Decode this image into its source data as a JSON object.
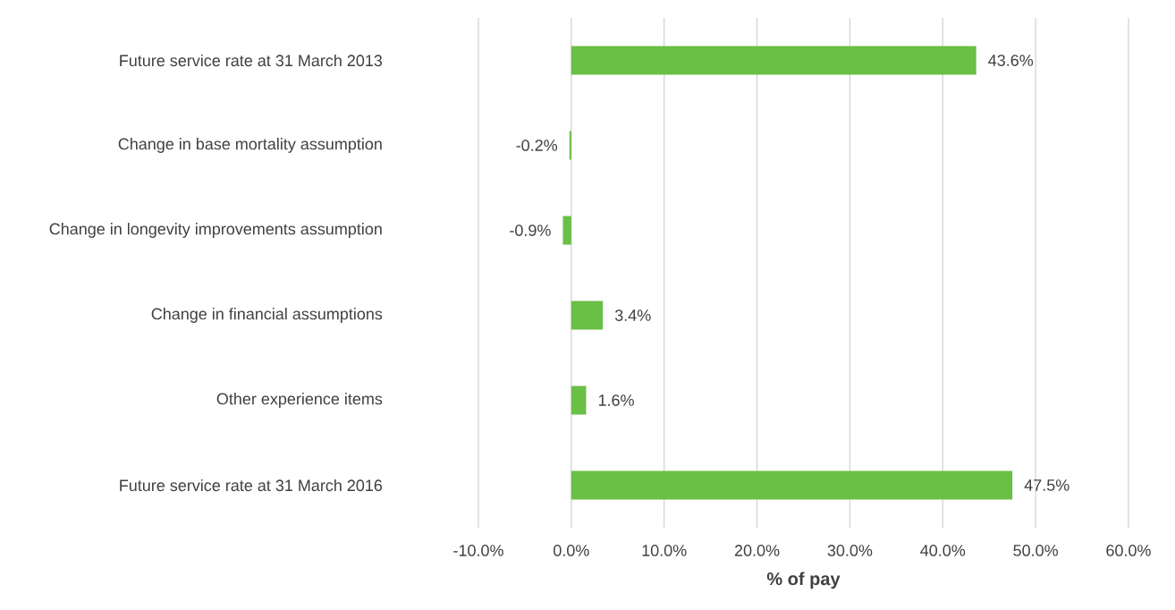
{
  "chart_data": {
    "type": "bar",
    "orientation": "horizontal",
    "xlabel": "% of pay",
    "categories": [
      "Future service rate at 31 March 2013",
      "Change in base mortality assumption",
      "Change in longevity improvements assumption",
      "Change in financial assumptions",
      "Other experience items",
      "Future service rate at 31 March 2016"
    ],
    "values": [
      43.6,
      -0.2,
      -0.9,
      3.4,
      1.6,
      47.5
    ],
    "value_labels": [
      "43.6%",
      "-0.2%",
      "-0.9%",
      "3.4%",
      "1.6%",
      "47.5%"
    ],
    "color": "#6abf45",
    "xlim": [
      -10,
      60
    ],
    "xticks": [
      {
        "value": -10,
        "label": "-10.0%"
      },
      {
        "value": 0,
        "label": "0.0%"
      },
      {
        "value": 10,
        "label": "10.0%"
      },
      {
        "value": 20,
        "label": "20.0%"
      },
      {
        "value": 30,
        "label": "30.0%"
      },
      {
        "value": 40,
        "label": "40.0%"
      },
      {
        "value": 50,
        "label": "50.0%"
      },
      {
        "value": 60,
        "label": "60.0%"
      }
    ],
    "grid": "x"
  }
}
